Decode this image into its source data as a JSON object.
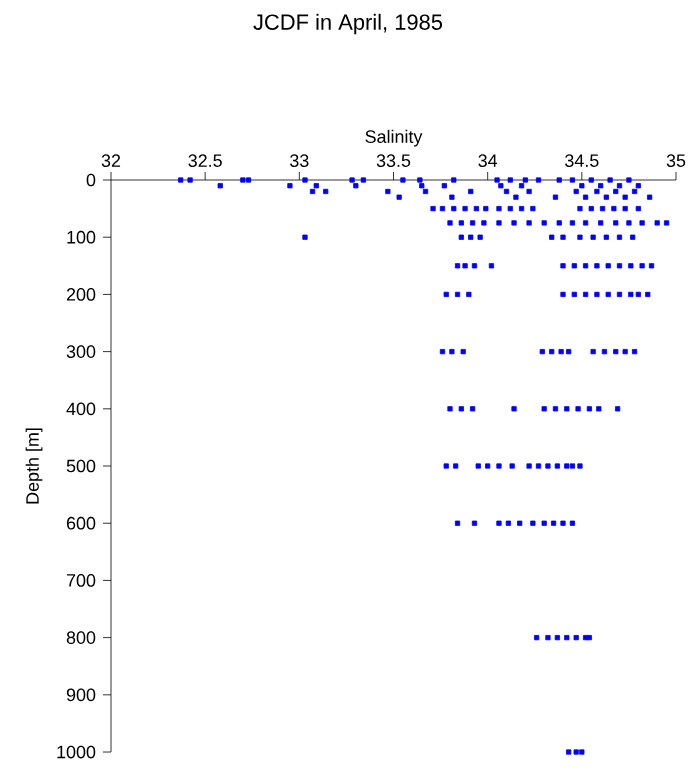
{
  "chart_data": {
    "type": "scatter",
    "title": "JCDF in April, 1985",
    "xlabel": "Salinity",
    "ylabel": "Depth [m]",
    "xlim": [
      32,
      35
    ],
    "xticks": [
      32,
      32.5,
      33,
      33.5,
      34,
      34.5,
      35
    ],
    "ylim": [
      1000,
      0
    ],
    "yticks": [
      0,
      100,
      200,
      300,
      400,
      500,
      600,
      700,
      800,
      900,
      1000
    ],
    "grid": false,
    "marker": "square",
    "series": [
      {
        "color": "#0000ff",
        "x": [
          32.37,
          32.42,
          32.58,
          32.7,
          32.73,
          32.95,
          33.03,
          33.07,
          33.09,
          33.14,
          33.28,
          33.3,
          33.34,
          33.47,
          33.53,
          33.55,
          33.64,
          33.65,
          33.67,
          33.77,
          33.82,
          33.81,
          33.91,
          34.05,
          34.07,
          34.1,
          34.12,
          34.15,
          34.18,
          34.2,
          34.22,
          34.27,
          34.36,
          34.38,
          34.45,
          34.47,
          34.5,
          34.52,
          34.55,
          34.58,
          34.6,
          34.63,
          34.65,
          34.68,
          34.7,
          34.73,
          34.75,
          34.78,
          34.8,
          34.86,
          33.71,
          33.76,
          33.82,
          33.88,
          33.94,
          33.99,
          34.06,
          34.12,
          34.18,
          34.24,
          34.49,
          34.55,
          34.61,
          34.67,
          34.73,
          34.8,
          33.8,
          33.86,
          33.92,
          33.98,
          34.06,
          34.14,
          34.22,
          34.3,
          34.38,
          34.45,
          34.52,
          34.6,
          34.68,
          34.75,
          34.82,
          34.9,
          34.95,
          33.03,
          33.86,
          33.91,
          33.96,
          34.34,
          34.4,
          34.49,
          34.56,
          34.63,
          34.7,
          34.77,
          33.84,
          33.88,
          33.93,
          34.02,
          34.4,
          34.46,
          34.52,
          34.58,
          34.64,
          34.7,
          34.76,
          34.82,
          34.87,
          33.78,
          33.84,
          33.9,
          34.4,
          34.46,
          34.52,
          34.58,
          34.64,
          34.7,
          34.76,
          34.8,
          34.85,
          33.76,
          33.81,
          33.87,
          34.29,
          34.34,
          34.39,
          34.43,
          34.56,
          34.62,
          34.68,
          34.73,
          34.78,
          33.8,
          33.86,
          33.92,
          34.14,
          34.3,
          34.36,
          34.42,
          34.48,
          34.54,
          34.59,
          34.69,
          33.78,
          33.83,
          33.95,
          34.0,
          34.06,
          34.13,
          34.22,
          34.27,
          34.32,
          34.37,
          34.42,
          34.45,
          34.49,
          33.84,
          33.93,
          34.06,
          34.11,
          34.17,
          34.24,
          34.3,
          34.35,
          34.4,
          34.45,
          34.26,
          34.32,
          34.37,
          34.42,
          34.47,
          34.52,
          34.54,
          34.43,
          34.47,
          34.5
        ],
        "values": [
          0,
          0,
          10,
          0,
          0,
          10,
          0,
          20,
          10,
          20,
          0,
          10,
          0,
          20,
          30,
          0,
          0,
          10,
          20,
          10,
          0,
          30,
          20,
          0,
          10,
          20,
          0,
          30,
          10,
          0,
          20,
          0,
          30,
          0,
          0,
          20,
          10,
          30,
          0,
          20,
          10,
          30,
          0,
          20,
          10,
          30,
          0,
          20,
          10,
          30,
          50,
          50,
          50,
          50,
          50,
          50,
          50,
          50,
          50,
          50,
          50,
          50,
          50,
          50,
          50,
          50,
          75,
          75,
          75,
          75,
          75,
          75,
          75,
          75,
          75,
          75,
          75,
          75,
          75,
          75,
          75,
          75,
          75,
          100,
          100,
          100,
          100,
          100,
          100,
          100,
          100,
          100,
          100,
          100,
          150,
          150,
          150,
          150,
          150,
          150,
          150,
          150,
          150,
          150,
          150,
          150,
          150,
          200,
          200,
          200,
          200,
          200,
          200,
          200,
          200,
          200,
          200,
          200,
          200,
          300,
          300,
          300,
          300,
          300,
          300,
          300,
          300,
          300,
          300,
          300,
          300,
          400,
          400,
          400,
          400,
          400,
          400,
          400,
          400,
          400,
          400,
          400,
          500,
          500,
          500,
          500,
          500,
          500,
          500,
          500,
          500,
          500,
          500,
          500,
          500,
          600,
          600,
          600,
          600,
          600,
          600,
          600,
          600,
          600,
          600,
          800,
          800,
          800,
          800,
          800,
          800,
          800,
          1000,
          1000,
          1000
        ]
      }
    ]
  }
}
